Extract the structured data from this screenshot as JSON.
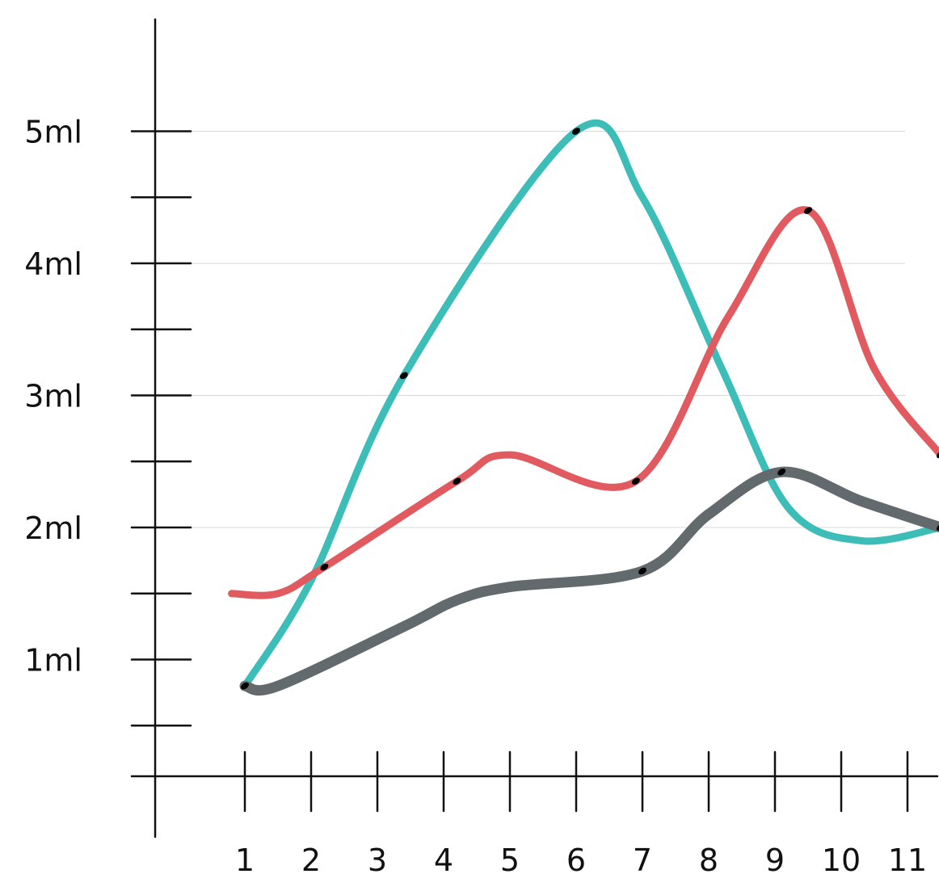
{
  "chart_data": {
    "type": "line",
    "title": "",
    "xlabel": "",
    "ylabel": "",
    "x_ticks": [
      "1",
      "2",
      "3",
      "4",
      "5",
      "6",
      "7",
      "8",
      "9",
      "10",
      "11"
    ],
    "y_tick_labels": [
      {
        "value": 1,
        "label": "1ml"
      },
      {
        "value": 2,
        "label": "2ml"
      },
      {
        "value": 3,
        "label": "3ml"
      },
      {
        "value": 4,
        "label": "4ml"
      },
      {
        "value": 5,
        "label": "5ml"
      }
    ],
    "y_minor_ticks": [
      0.5,
      1.5,
      2.5,
      3.5,
      4.5
    ],
    "gridlines_at": [
      2,
      3,
      4,
      5
    ],
    "xlim": [
      0.2,
      11.55
    ],
    "ylim": [
      -0.2,
      5.9
    ],
    "grid": true,
    "legend": "none",
    "series": [
      {
        "color": "#3dbdb8",
        "width": 9,
        "x": [
          1,
          2,
          3.4,
          6,
          7,
          8.2,
          9.2,
          10.3,
          11.5
        ],
        "y": [
          0.8,
          1.6,
          3.15,
          5.0,
          4.5,
          3.2,
          2.15,
          1.9,
          2.0
        ],
        "markers_x": [
          3.4,
          6
        ],
        "markers_y": [
          3.15,
          5.0
        ]
      },
      {
        "color": "#e05a60",
        "width": 9,
        "x": [
          0.8,
          1.5,
          2.2,
          4.2,
          5,
          6.9,
          8.3,
          9.5,
          10.5,
          11.5
        ],
        "y": [
          1.5,
          1.5,
          1.7,
          2.35,
          2.55,
          2.35,
          3.6,
          4.4,
          3.2,
          2.55
        ],
        "markers_x": [
          2.2,
          4.2,
          6.9,
          9.5,
          11.5
        ],
        "markers_y": [
          1.7,
          2.35,
          2.35,
          4.4,
          2.55
        ]
      },
      {
        "color": "#636a6d",
        "width": 13,
        "x": [
          1,
          1.5,
          3.4,
          4.2,
          5,
          7,
          8,
          9.1,
          10.3,
          11.5
        ],
        "y": [
          0.8,
          0.8,
          1.25,
          1.45,
          1.55,
          1.67,
          2.1,
          2.42,
          2.2,
          2.0
        ],
        "markers_x": [
          1,
          7,
          9.1,
          11.5
        ],
        "markers_y": [
          0.8,
          1.67,
          2.42,
          2.0
        ]
      }
    ]
  }
}
